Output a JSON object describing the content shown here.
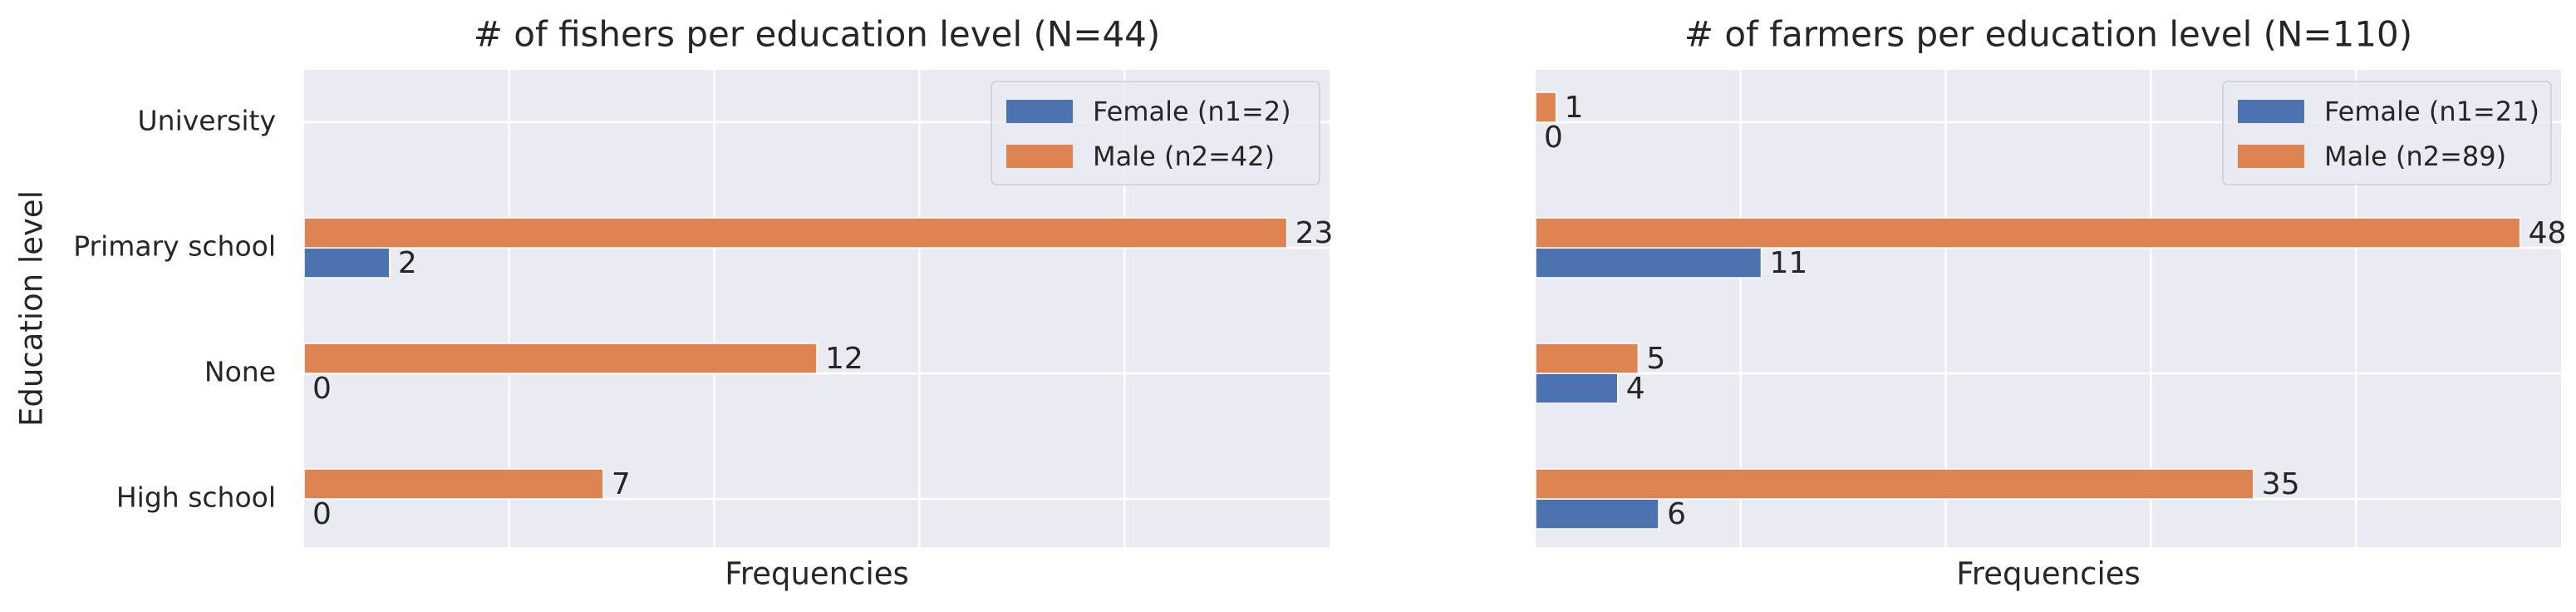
{
  "chart_data": [
    {
      "type": "bar",
      "orientation": "horizontal",
      "title": "# of fishers per education level (N=44)",
      "xlabel": "Frequencies",
      "ylabel": "Education level",
      "categories": [
        "High school",
        "None",
        "Primary school",
        "University"
      ],
      "series": [
        {
          "name": "Female (n1=2)",
          "color": "#4c72b0",
          "values": [
            0,
            0,
            2,
            null
          ]
        },
        {
          "name": "Male (n2=42)",
          "color": "#dd8452",
          "values": [
            7,
            12,
            23,
            null
          ]
        }
      ],
      "xlim": [
        0,
        24
      ],
      "grid": true,
      "legend_position": "top-right"
    },
    {
      "type": "bar",
      "orientation": "horizontal",
      "title": "# of farmers per education level (N=110)",
      "xlabel": "Frequencies",
      "ylabel": "",
      "categories": [
        "High school",
        "None",
        "Primary school",
        "University"
      ],
      "series": [
        {
          "name": "Female (n1=21)",
          "color": "#4c72b0",
          "values": [
            6,
            4,
            11,
            0
          ]
        },
        {
          "name": "Male (n2=89)",
          "color": "#dd8452",
          "values": [
            35,
            5,
            48,
            1
          ]
        }
      ],
      "xlim": [
        0,
        50
      ],
      "grid": true,
      "legend_position": "top-right"
    }
  ]
}
